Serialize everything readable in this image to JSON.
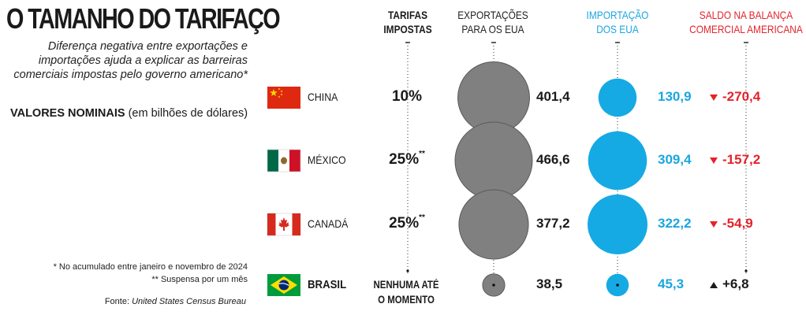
{
  "title": "O TAMANHO DO TARIFAÇO",
  "subtitle": "Diferença negativa entre exportações e importações ajuda a explicar as barreiras comerciais impostas pelo governo americano*",
  "units_bold": "VALORES NOMINAIS",
  "units_rest": " (em bilhões de dólares)",
  "note1": "* No acumulado entre janeiro e novembro de 2024",
  "note2": "** Suspensa por um mês",
  "source_label": "Fonte: ",
  "source_name": "United States Census Bureau",
  "columns": {
    "tariffs": [
      "TARIFAS",
      "IMPOSTAS"
    ],
    "exports": [
      "EXPORTAÇÕES",
      "PARA OS EUA"
    ],
    "imports": [
      "IMPORTAÇÃO",
      "DOS EUA"
    ],
    "balance": [
      "SALDO NA BALANÇA",
      "COMERCIAL AMERICANA"
    ]
  },
  "colors": {
    "exports": "#808080",
    "imports": "#15aae4",
    "balance_negative": "#e3232c",
    "balance_positive": "#1a1a1a"
  },
  "chart_data": {
    "type": "table",
    "rows": [
      {
        "country": "CHINA",
        "flag": "china-flag",
        "tariff": "10%",
        "tariff_mark": "",
        "exports": 401.4,
        "exports_label": "401,4",
        "imports": 130.9,
        "imports_label": "130,9",
        "balance": -270.4,
        "balance_label": "-270,4",
        "trend": "down"
      },
      {
        "country": "MÉXICO",
        "flag": "mexico-flag",
        "tariff": "25%",
        "tariff_mark": "**",
        "exports": 466.6,
        "exports_label": "466,6",
        "imports": 309.4,
        "imports_label": "309,4",
        "balance": -157.2,
        "balance_label": "-157,2",
        "trend": "down"
      },
      {
        "country": "CANADÁ",
        "flag": "canada-flag",
        "tariff": "25%",
        "tariff_mark": "**",
        "exports": 377.2,
        "exports_label": "377,2",
        "imports": 322.2,
        "imports_label": "322,2",
        "balance": -54.9,
        "balance_label": "-54,9",
        "trend": "down"
      },
      {
        "country": "BRASIL",
        "flag": "brazil-flag",
        "tariff": "NENHUMA ATÉ O MOMENTO",
        "tariff_mark": "",
        "exports": 38.5,
        "exports_label": "38,5",
        "imports": 45.3,
        "imports_label": "45,3",
        "balance": 6.8,
        "balance_label": "+6,8",
        "trend": "up"
      }
    ]
  }
}
